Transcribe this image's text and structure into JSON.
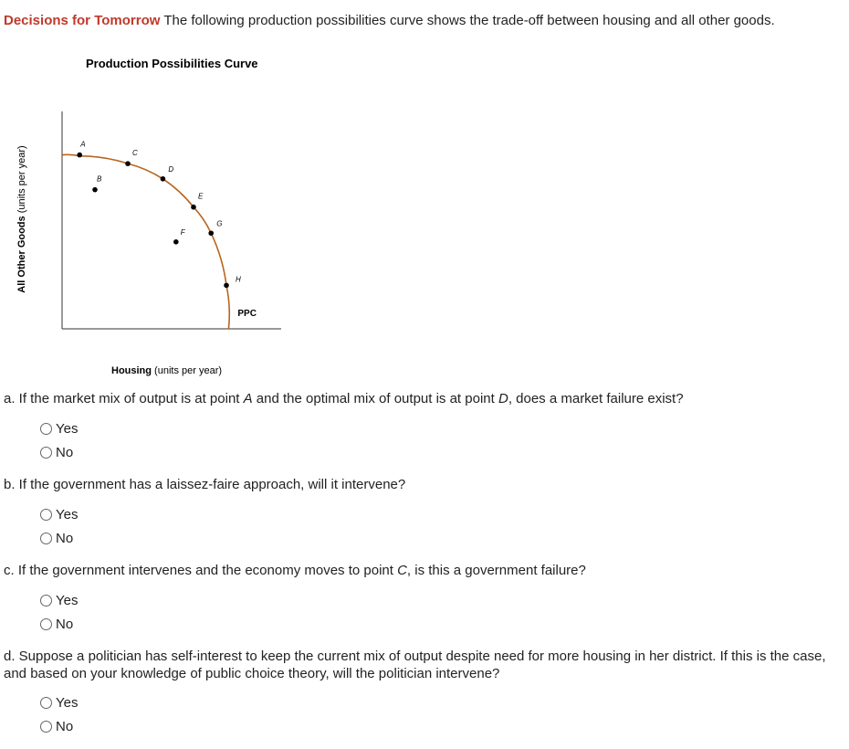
{
  "header": {
    "lead": "Decisions for Tomorrow",
    "text": " The following production possibilities curve shows the trade-off between housing and all other goods."
  },
  "chart_data": {
    "type": "scatter",
    "title": "Production Possibilities Curve",
    "x_label": {
      "bold": "Housing",
      "rest": " (units per year)"
    },
    "y_label": {
      "bold": "All Other Goods",
      "rest": " (units per year)"
    },
    "xlim": [
      0,
      10
    ],
    "ylim": [
      0,
      10
    ],
    "curve": {
      "name": "PPC",
      "color": "#b8651f",
      "x": [
        0,
        0.8,
        3.0,
        4.6,
        6.0,
        6.8,
        7.5,
        7.6
      ],
      "y": [
        8.0,
        7.95,
        7.6,
        6.9,
        5.6,
        4.4,
        2.0,
        0
      ]
    },
    "points": {
      "color": "#000000",
      "labels": [
        "A",
        "C",
        "D",
        "E",
        "G",
        "H",
        "B",
        "F"
      ],
      "x": [
        0.8,
        3.0,
        4.6,
        6.0,
        6.8,
        7.5,
        1.5,
        5.2
      ],
      "y": [
        8.0,
        7.6,
        6.9,
        5.6,
        4.4,
        2.0,
        6.4,
        4.0
      ]
    }
  },
  "questions": [
    {
      "parts": [
        {
          "text": "a. If the market mix of output is at point "
        },
        {
          "text": "A",
          "italic": true
        },
        {
          "text": " and the optimal mix of output is at point "
        },
        {
          "text": "D",
          "italic": true
        },
        {
          "text": ", does a market failure exist?"
        }
      ],
      "options": [
        "Yes",
        "No"
      ]
    },
    {
      "parts": [
        {
          "text": "b. If the government has a laissez-faire approach, will it intervene?"
        }
      ],
      "options": [
        "Yes",
        "No"
      ]
    },
    {
      "parts": [
        {
          "text": "c. If the government intervenes and the economy moves to point "
        },
        {
          "text": "C",
          "italic": true
        },
        {
          "text": ", is this a government failure?"
        }
      ],
      "options": [
        "Yes",
        "No"
      ]
    },
    {
      "parts": [
        {
          "text": "d. Suppose a politician has self-interest to keep the current mix of output despite need for more housing in her district. If this is the case, and based on your knowledge of public choice theory, will the politician intervene?"
        }
      ],
      "options": [
        "Yes",
        "No"
      ]
    }
  ]
}
